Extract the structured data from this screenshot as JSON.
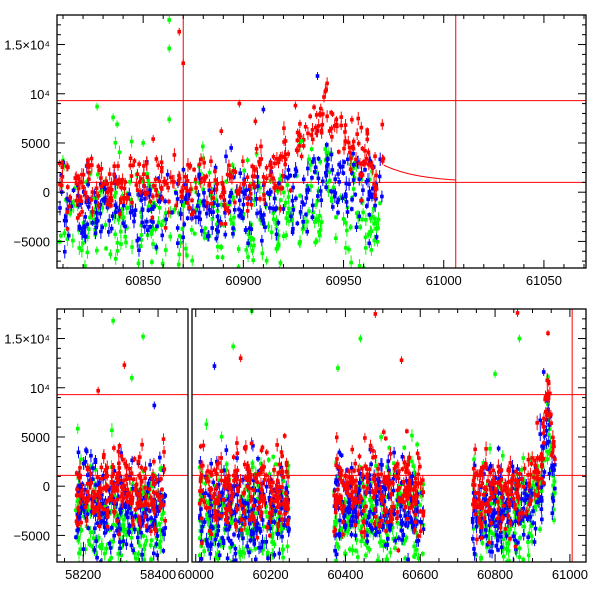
{
  "chart_data": [
    {
      "type": "scatter",
      "panel": "top",
      "title": "",
      "xlabel": "",
      "ylabel": "",
      "xlim": [
        60807,
        61071
      ],
      "ylim": [
        -7700,
        18000
      ],
      "x_ticks": [
        60850,
        60900,
        60950,
        61000,
        61050
      ],
      "x_tick_labels": [
        "60850",
        "60900",
        "60950",
        "61000",
        "61050"
      ],
      "y_ticks": [
        -5000,
        0,
        5000,
        10000,
        15000
      ],
      "y_tick_labels": [
        "−5000",
        "0",
        "5000",
        "10⁴",
        "1.5×10⁴"
      ],
      "hlines": [
        9300,
        1000
      ],
      "vlines": [
        60870,
        61006
      ],
      "model_curve": {
        "peak_x": 60941,
        "peak_y": 9800,
        "baseline": 1000,
        "rise_days": 14,
        "decay_days": 18,
        "x_range": [
          60920,
          61006
        ]
      },
      "segments": [
        [
          60808,
          60970
        ]
      ],
      "series": [
        {
          "name": "red",
          "color": "#ff0000",
          "offset": 600,
          "scatter": 1500,
          "follows_model": true
        },
        {
          "name": "blue",
          "color": "#0000ff",
          "offset": -1700,
          "scatter": 2000,
          "follows_model": true,
          "model_scale": 0.45
        },
        {
          "name": "green",
          "color": "#00ff00",
          "offset": -2600,
          "scatter": 2600,
          "follows_model": true,
          "model_scale": 0.3
        }
      ],
      "outliers": [
        {
          "x": 60863,
          "y": 17500,
          "series": "green"
        },
        {
          "x": 60863,
          "y": 14600,
          "series": "green"
        },
        {
          "x": 60868,
          "y": 16300,
          "series": "red"
        },
        {
          "x": 60870,
          "y": 13100,
          "series": "red"
        },
        {
          "x": 60863,
          "y": 7400,
          "series": "green"
        },
        {
          "x": 60827,
          "y": 8700,
          "series": "green"
        },
        {
          "x": 60835,
          "y": 7600,
          "series": "green"
        },
        {
          "x": 60837,
          "y": 6900,
          "series": "green"
        },
        {
          "x": 60850,
          "y": 5000,
          "series": "green"
        },
        {
          "x": 60855,
          "y": 5400,
          "series": "red"
        },
        {
          "x": 60898,
          "y": 9000,
          "series": "red"
        },
        {
          "x": 60910,
          "y": 8400,
          "series": "blue"
        },
        {
          "x": 60906,
          "y": 7200,
          "series": "red"
        },
        {
          "x": 60889,
          "y": 6200,
          "series": "red"
        },
        {
          "x": 60937,
          "y": 11800,
          "series": "blue"
        },
        {
          "x": 60926,
          "y": 8800,
          "series": "red"
        },
        {
          "x": 60929,
          "y": 5200,
          "series": "green"
        }
      ]
    },
    {
      "type": "scatter",
      "panel": "bottom",
      "title": "",
      "xlabel": "",
      "ylabel": "",
      "broken_axis": true,
      "xlim_segments": [
        [
          58130,
          58480
        ],
        [
          59990,
          61043
        ]
      ],
      "ylim": [
        -7700,
        18000
      ],
      "x_ticks": [
        58200,
        58400,
        60000,
        60200,
        60400,
        60600,
        60800,
        61000
      ],
      "x_tick_labels": [
        "58200",
        "58400",
        "60000",
        "60200",
        "60400",
        "60600",
        "60800",
        "61000"
      ],
      "y_ticks": [
        -5000,
        0,
        5000,
        10000,
        15000
      ],
      "y_tick_labels": [
        "−5000",
        "0",
        "5000",
        "10⁴",
        "1.5×10⁴"
      ],
      "hlines": [
        9300,
        1100
      ],
      "vlines": [
        61006
      ],
      "segments": [
        [
          58180,
          58420
        ],
        [
          60010,
          60250
        ],
        [
          60370,
          60610
        ],
        [
          60740,
          60960
        ]
      ],
      "series": [
        {
          "name": "red",
          "color": "#ff0000",
          "offset": -500,
          "scatter": 1900
        },
        {
          "name": "blue",
          "color": "#0000ff",
          "offset": -2500,
          "scatter": 2300
        },
        {
          "name": "green",
          "color": "#00ff00",
          "offset": -3200,
          "scatter": 2700
        }
      ],
      "outliers": [
        {
          "x": 58280,
          "y": 16800,
          "series": "green"
        },
        {
          "x": 58360,
          "y": 15200,
          "series": "green"
        },
        {
          "x": 58310,
          "y": 12300,
          "series": "red"
        },
        {
          "x": 58330,
          "y": 11000,
          "series": "green"
        },
        {
          "x": 58240,
          "y": 9700,
          "series": "red"
        },
        {
          "x": 58390,
          "y": 8200,
          "series": "blue"
        },
        {
          "x": 60150,
          "y": 17800,
          "series": "green"
        },
        {
          "x": 60100,
          "y": 14200,
          "series": "green"
        },
        {
          "x": 60050,
          "y": 12200,
          "series": "blue"
        },
        {
          "x": 60120,
          "y": 13000,
          "series": "red"
        },
        {
          "x": 60480,
          "y": 17500,
          "series": "red"
        },
        {
          "x": 60440,
          "y": 15000,
          "series": "green"
        },
        {
          "x": 60380,
          "y": 12000,
          "series": "green"
        },
        {
          "x": 60550,
          "y": 12800,
          "series": "red"
        },
        {
          "x": 60860,
          "y": 17600,
          "series": "red"
        },
        {
          "x": 60865,
          "y": 15000,
          "series": "green"
        },
        {
          "x": 60800,
          "y": 11400,
          "series": "green"
        },
        {
          "x": 60930,
          "y": 11600,
          "series": "blue"
        }
      ],
      "peak": {
        "x": 60941,
        "y": 12000
      }
    }
  ]
}
